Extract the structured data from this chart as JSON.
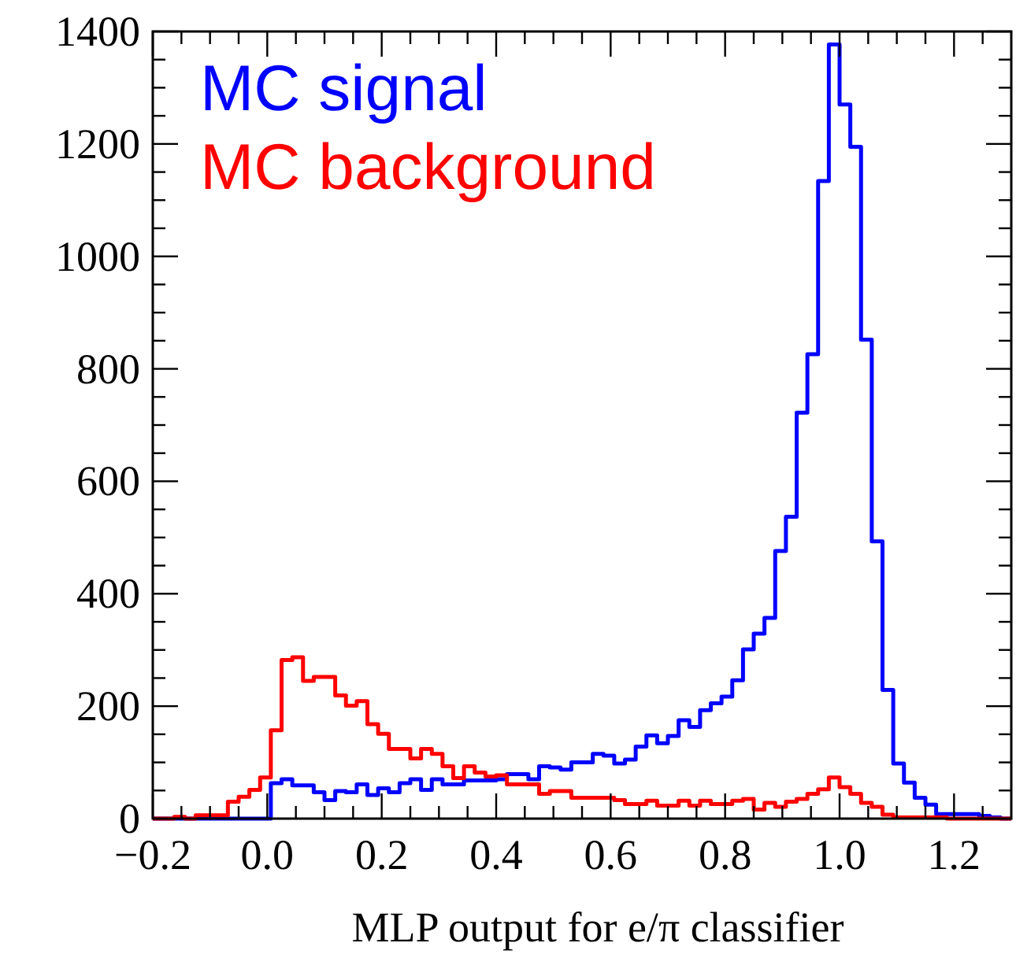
{
  "chart_data": {
    "type": "histogram",
    "xlabel": "MLP output for e/π classifier",
    "bins": [
      -0.2,
      -0.18125,
      -0.1625,
      -0.14375,
      -0.125,
      -0.10625,
      -0.0875,
      -0.06875,
      -0.05,
      -0.03125,
      -0.0125,
      0.00625,
      0.025,
      0.04375,
      0.0625,
      0.08125,
      0.1,
      0.11875,
      0.1375,
      0.15625,
      0.175,
      0.19375,
      0.2125,
      0.23125,
      0.25,
      0.26875,
      0.2875,
      0.30625,
      0.325,
      0.34375,
      0.3625,
      0.38125,
      0.4,
      0.41875,
      0.4375,
      0.45625,
      0.475,
      0.49375,
      0.5125,
      0.53125,
      0.55,
      0.56875,
      0.5875,
      0.60625,
      0.625,
      0.64375,
      0.6625,
      0.68125,
      0.7,
      0.71875,
      0.7375,
      0.75625,
      0.775,
      0.79375,
      0.8125,
      0.83125,
      0.85,
      0.86875,
      0.8875,
      0.90625,
      0.925,
      0.94375,
      0.9625,
      0.98125,
      1.0,
      1.01875,
      1.0375,
      1.05625,
      1.075,
      1.09375,
      1.1125,
      1.13125,
      1.15,
      1.16875,
      1.1875,
      1.20625,
      1.225,
      1.24375,
      1.2625,
      1.28125,
      1.3
    ],
    "series": [
      {
        "name": "MC signal",
        "color": "#0000ff",
        "values": [
          0,
          0,
          0,
          0,
          0,
          0,
          0,
          0,
          0,
          0,
          0,
          63,
          70,
          59,
          59,
          47,
          33,
          49,
          47,
          61,
          42,
          54,
          47,
          63,
          70,
          51,
          70,
          61,
          61,
          68,
          68,
          68,
          70,
          79,
          79,
          70,
          93,
          91,
          87,
          100,
          100,
          115,
          112,
          98,
          105,
          128,
          148,
          134,
          147,
          175,
          163,
          193,
          205,
          217,
          246,
          301,
          329,
          357,
          476,
          537,
          722,
          826,
          1134,
          1377,
          1270,
          1195,
          852,
          493,
          229,
          98,
          64,
          37,
          25,
          8,
          8,
          8,
          8,
          5,
          2,
          0
        ]
      },
      {
        "name": "MC background",
        "color": "#ff0000",
        "values": [
          0,
          0,
          3,
          0,
          6,
          6,
          6,
          30,
          39,
          51,
          73,
          157,
          282,
          287,
          245,
          252,
          252,
          219,
          201,
          209,
          168,
          151,
          124,
          124,
          107,
          124,
          115,
          93,
          72,
          93,
          82,
          75,
          77,
          61,
          61,
          61,
          44,
          49,
          49,
          37,
          37,
          37,
          37,
          33,
          26,
          26,
          32,
          23,
          23,
          32,
          23,
          32,
          26,
          26,
          32,
          35,
          16,
          28,
          21,
          30,
          35,
          44,
          52,
          73,
          56,
          44,
          28,
          21,
          7,
          2,
          2,
          2,
          2,
          2,
          0,
          0,
          0,
          0,
          0,
          0
        ]
      }
    ],
    "xlim": [
      -0.2,
      1.3
    ],
    "xticks": [
      {
        "value": -0.2,
        "label": "−0.2"
      },
      {
        "value": -0.15,
        "label": null
      },
      {
        "value": -0.1,
        "label": null
      },
      {
        "value": -0.05,
        "label": null
      },
      {
        "value": 0,
        "label": "0.0"
      },
      {
        "value": 0.05,
        "label": null
      },
      {
        "value": 0.1,
        "label": null
      },
      {
        "value": 0.15,
        "label": null
      },
      0.2,
      {
        "value": 0.25,
        "label": null
      },
      {
        "value": 0.3,
        "label": null
      },
      {
        "value": 0.35,
        "label": null
      },
      0.4,
      {
        "value": 0.45,
        "label": null
      },
      {
        "value": 0.5,
        "label": null
      },
      {
        "value": 0.55,
        "label": null
      },
      0.6,
      {
        "value": 0.65,
        "label": null
      },
      {
        "value": 0.7,
        "label": null
      },
      {
        "value": 0.75,
        "label": null
      },
      0.8,
      {
        "value": 0.85,
        "label": null
      },
      {
        "value": 0.9,
        "label": null
      },
      {
        "value": 0.95,
        "label": null
      },
      {
        "value": 1,
        "label": "1.0"
      },
      {
        "value": 1.05,
        "label": null
      },
      {
        "value": 1.1,
        "label": null
      },
      {
        "value": 1.15,
        "label": null
      },
      1.2,
      {
        "value": 1.25,
        "label": null
      }
    ],
    "ylim": [
      0,
      1400
    ],
    "yticks": [
      0,
      {
        "value": 50,
        "label": null
      },
      {
        "value": 100,
        "label": null
      },
      {
        "value": 150,
        "label": null
      },
      200,
      {
        "value": 250,
        "label": null
      },
      {
        "value": 300,
        "label": null
      },
      {
        "value": 350,
        "label": null
      },
      400,
      {
        "value": 450,
        "label": null
      },
      {
        "value": 500,
        "label": null
      },
      {
        "value": 550,
        "label": null
      },
      600,
      {
        "value": 650,
        "label": null
      },
      {
        "value": 700,
        "label": null
      },
      {
        "value": 750,
        "label": null
      },
      800,
      {
        "value": 850,
        "label": null
      },
      {
        "value": 900,
        "label": null
      },
      {
        "value": 950,
        "label": null
      },
      1000,
      {
        "value": 1050,
        "label": null
      },
      {
        "value": 1100,
        "label": null
      },
      {
        "value": 1150,
        "label": null
      },
      1200,
      {
        "value": 1250,
        "label": null
      },
      {
        "value": 1300,
        "label": null
      },
      {
        "value": 1350,
        "label": null
      },
      1400
    ],
    "legend": "top left",
    "grid": false
  }
}
